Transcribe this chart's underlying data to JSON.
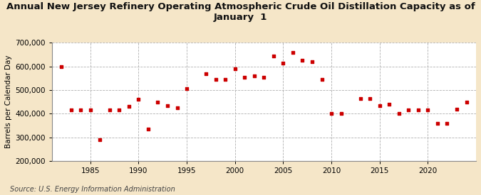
{
  "title": "Annual New Jersey Refinery Operating Atmospheric Crude Oil Distillation Capacity as of\nJanuary  1",
  "ylabel": "Barrels per Calendar Day",
  "source": "Source: U.S. Energy Information Administration",
  "background_color": "#f5e6c8",
  "plot_bg_color": "#ffffff",
  "marker_color": "#cc0000",
  "years": [
    1982,
    1983,
    1984,
    1985,
    1986,
    1987,
    1988,
    1989,
    1990,
    1991,
    1992,
    1993,
    1994,
    1995,
    1997,
    1998,
    1999,
    2000,
    2001,
    2002,
    2003,
    2004,
    2005,
    2006,
    2007,
    2008,
    2009,
    2010,
    2011,
    2013,
    2014,
    2015,
    2016,
    2017,
    2018,
    2019,
    2020,
    2021,
    2022,
    2023,
    2024
  ],
  "values": [
    600000,
    415000,
    415000,
    415000,
    290000,
    415000,
    415000,
    430000,
    460000,
    335000,
    450000,
    435000,
    425000,
    505000,
    570000,
    545000,
    545000,
    590000,
    555000,
    560000,
    555000,
    645000,
    615000,
    660000,
    625000,
    620000,
    545000,
    400000,
    400000,
    465000,
    465000,
    435000,
    440000,
    400000,
    415000,
    415000,
    415000,
    360000,
    360000,
    420000,
    450000
  ],
  "ylim": [
    200000,
    700000
  ],
  "yticks": [
    200000,
    300000,
    400000,
    500000,
    600000,
    700000
  ],
  "xlim": [
    1981,
    2025
  ],
  "xticks": [
    1985,
    1990,
    1995,
    2000,
    2005,
    2010,
    2015,
    2020
  ],
  "title_fontsize": 9.5,
  "ylabel_fontsize": 7.5,
  "tick_fontsize": 7.5,
  "source_fontsize": 7.0
}
